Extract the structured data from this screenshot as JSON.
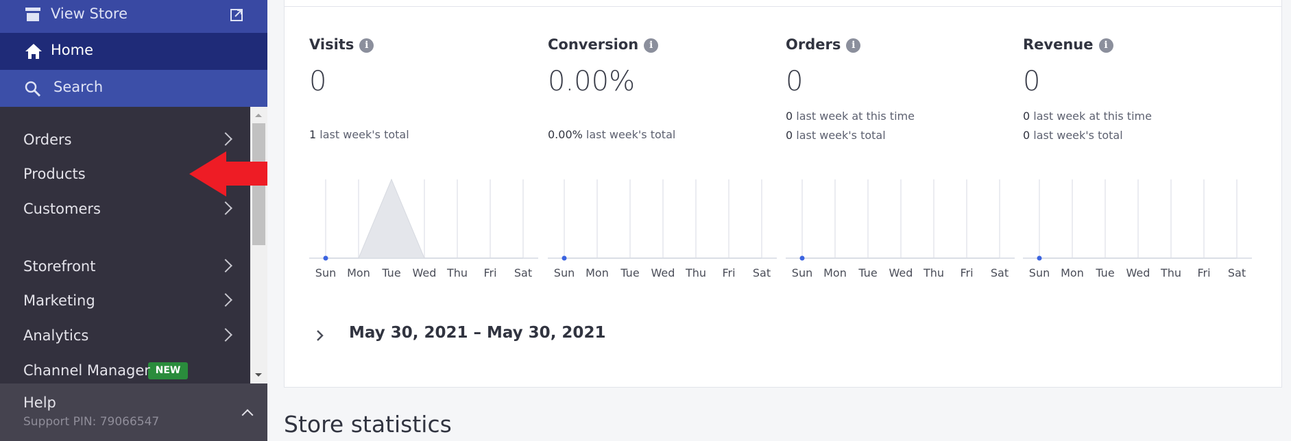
{
  "sidebar": {
    "view_store": "View Store",
    "home": "Home",
    "search": "Search",
    "menu": [
      "Orders",
      "Products",
      "Customers",
      "Storefront",
      "Marketing",
      "Analytics",
      "Channel Manager"
    ],
    "badge": "NEW",
    "help": "Help",
    "support_pin": "Support PIN: 79066547"
  },
  "days": [
    "Sun",
    "Mon",
    "Tue",
    "Wed",
    "Thu",
    "Fri",
    "Sat"
  ],
  "ylim": [
    0,
    1
  ],
  "metrics": [
    {
      "label": "Visits",
      "value": "0",
      "notes": [
        {
          "value": "1",
          "text": "last week's total"
        }
      ],
      "values": [
        0,
        0,
        1,
        0,
        0,
        0,
        0
      ]
    },
    {
      "label": "Conversion",
      "value": "0.00%",
      "notes": [
        {
          "value": "0.00%",
          "text": "last week's total"
        }
      ],
      "values": [
        0,
        0,
        0,
        0,
        0,
        0,
        0
      ]
    },
    {
      "label": "Orders",
      "value": "0",
      "notes": [
        {
          "value": "0",
          "text": "last week at this time"
        },
        {
          "value": "0",
          "text": "last week's total"
        }
      ],
      "values": [
        0,
        0,
        0,
        0,
        0,
        0,
        0
      ]
    },
    {
      "label": "Revenue",
      "value": "0",
      "notes": [
        {
          "value": "0",
          "text": "last week at this time"
        },
        {
          "value": "0",
          "text": "last week's total"
        }
      ],
      "values": [
        0,
        0,
        0,
        0,
        0,
        0,
        0
      ]
    }
  ],
  "date_range": "May 30, 2021 – May 30, 2021",
  "section_title": "Store statistics"
}
